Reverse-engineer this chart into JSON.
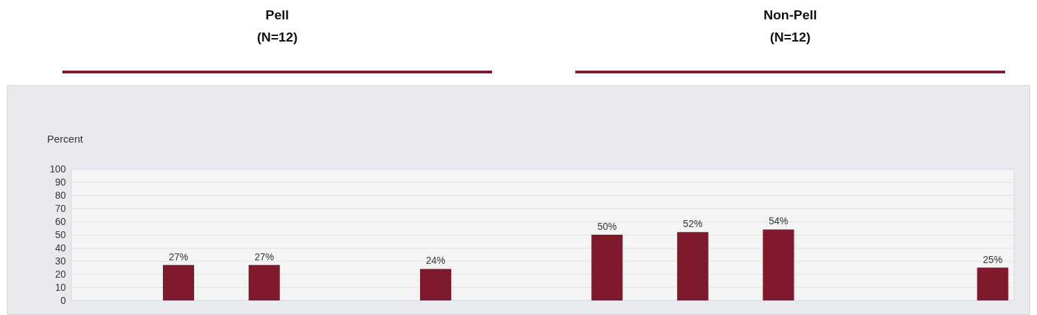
{
  "chart_data": {
    "type": "bar",
    "ylabel": "Percent",
    "annotations": [
      "Pell\n(N=12)",
      "Non-Pell\n(N=12)"
    ],
    "categories": [
      null,
      null,
      null,
      null,
      null,
      null,
      null,
      null,
      null,
      null,
      null,
      null,
      null,
      null,
      null,
      null,
      null,
      null,
      null,
      null,
      null,
      null
    ],
    "values": [
      null,
      null,
      27,
      null,
      27,
      null,
      null,
      null,
      24,
      null,
      null,
      null,
      50,
      null,
      52,
      null,
      54,
      null,
      null,
      null,
      null,
      25
    ],
    "value_labels": [
      null,
      null,
      "27%",
      null,
      "27%",
      null,
      null,
      null,
      "24%",
      null,
      null,
      null,
      "50%",
      null,
      "52%",
      null,
      "54%",
      null,
      null,
      null,
      null,
      "25%"
    ],
    "color": "#7f1a2d",
    "ylim": [
      0,
      100
    ],
    "yticks": [
      0,
      10,
      20,
      30,
      40,
      50,
      60,
      70,
      80,
      90,
      100
    ],
    "grid": "y"
  }
}
